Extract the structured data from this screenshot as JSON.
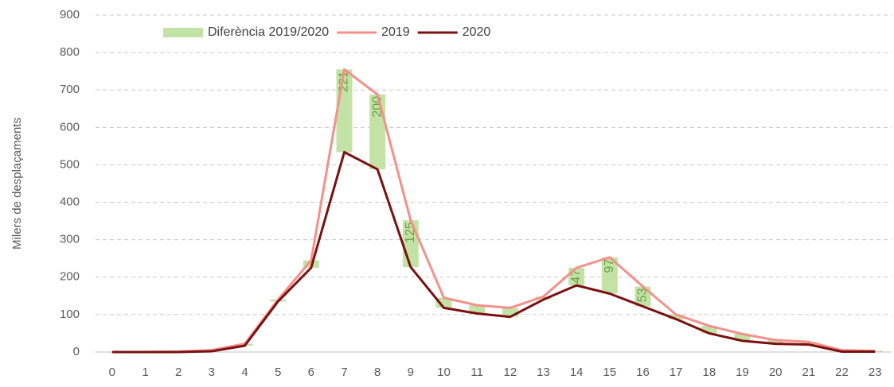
{
  "chart_data": {
    "type": "line",
    "y_label": "Milers de desplaçaments",
    "categories": [
      "0",
      "1",
      "2",
      "3",
      "4",
      "5",
      "6",
      "7",
      "8",
      "9",
      "10",
      "11",
      "12",
      "13",
      "14",
      "15",
      "16",
      "17",
      "18",
      "19",
      "20",
      "21",
      "22",
      "23"
    ],
    "series": [
      {
        "name": "Diferència 2019/2020",
        "color": "#c3e3a6",
        "values": [
          0,
          0,
          1,
          3,
          5,
          5,
          20,
          221,
          200,
          125,
          27,
          22,
          24,
          8,
          47,
          97,
          53,
          12,
          20,
          18,
          10,
          7,
          4,
          2
        ],
        "value_labels": [
          null,
          null,
          null,
          null,
          null,
          null,
          null,
          "221",
          "200",
          "125",
          null,
          null,
          null,
          null,
          "47",
          "97",
          "53",
          null,
          null,
          null,
          null,
          null,
          null,
          null
        ]
      },
      {
        "name": "2019",
        "color": "#f4908b",
        "values": [
          0,
          0,
          1,
          5,
          22,
          140,
          245,
          755,
          688,
          352,
          145,
          125,
          118,
          148,
          225,
          253,
          175,
          100,
          70,
          48,
          32,
          27,
          5,
          3
        ]
      },
      {
        "name": "2020",
        "color": "#7b1010",
        "values": [
          0,
          0,
          0,
          2,
          17,
          135,
          225,
          534,
          488,
          227,
          118,
          103,
          94,
          140,
          178,
          156,
          122,
          88,
          50,
          30,
          22,
          20,
          1,
          1
        ]
      }
    ],
    "ylim": [
      0,
      900
    ],
    "yticks": [
      0,
      100,
      200,
      300,
      400,
      500,
      600,
      700,
      800,
      900
    ],
    "grid": true
  }
}
